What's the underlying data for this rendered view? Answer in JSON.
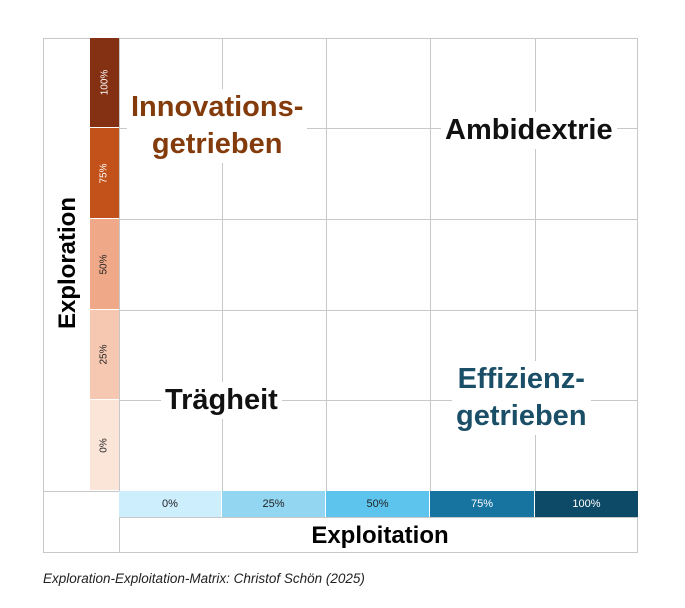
{
  "colors": {
    "exploration_scale": [
      "#843012",
      "#c2511a",
      "#f0a988",
      "#f6c7b1",
      "#fbe4d8"
    ],
    "exploitation_scale": [
      "#cdeefc",
      "#92d6f2",
      "#5dc4ee",
      "#17739f",
      "#0d4a67"
    ],
    "innovation_text": "#843b0c",
    "efficiency_text": "#1b4e67",
    "grid": "#c8c8c8"
  },
  "matrix": {
    "y_axis_label": "Exploration",
    "x_axis_label": "Exploitation",
    "y_scale": [
      "100%",
      "75%",
      "50%",
      "25%",
      "0%"
    ],
    "x_scale": [
      "0%",
      "25%",
      "50%",
      "75%",
      "100%"
    ],
    "quadrants": {
      "top_left": [
        "Innovations-",
        "getrieben"
      ],
      "top_right": [
        "Ambidextrie"
      ],
      "bottom_left": [
        "Trägheit"
      ],
      "bottom_right": [
        "Effizienz-",
        "getrieben"
      ]
    }
  },
  "caption": "Exploration-Exploitation-Matrix: Christof Schön (2025)"
}
